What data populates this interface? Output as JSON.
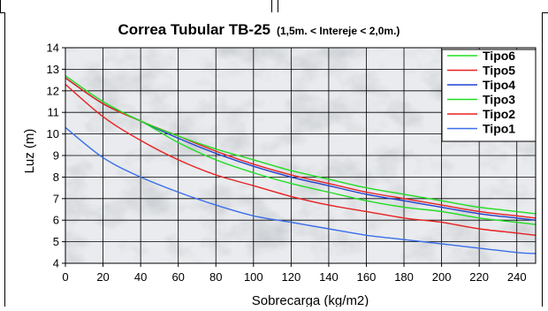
{
  "chart_data": {
    "type": "line",
    "title": "Correa Tubular TB-25",
    "subtitle": "(1,5m. < Intereje < 2,0m.)",
    "xlabel": "Sobrecarga (kg/m2)",
    "ylabel": "Luz (m)",
    "xlim": [
      0,
      250
    ],
    "ylim": [
      4,
      14
    ],
    "xticks": [
      0,
      20,
      40,
      60,
      80,
      100,
      120,
      140,
      160,
      180,
      200,
      220,
      240
    ],
    "yticks": [
      4,
      5,
      6,
      7,
      8,
      9,
      10,
      11,
      12,
      13,
      14
    ],
    "grid": true,
    "legend_position": "top-right",
    "x": [
      0,
      20,
      40,
      60,
      80,
      100,
      120,
      140,
      160,
      180,
      200,
      220,
      240,
      250
    ],
    "series": [
      {
        "name": "Tipo6",
        "color": "#22dd22",
        "values": [
          12.7,
          11.5,
          10.6,
          9.9,
          9.3,
          8.8,
          8.3,
          7.9,
          7.5,
          7.2,
          6.9,
          6.6,
          6.4,
          6.3
        ]
      },
      {
        "name": "Tipo5",
        "color": "#e82020",
        "values": [
          12.6,
          11.4,
          10.6,
          9.9,
          9.2,
          8.6,
          8.1,
          7.7,
          7.3,
          7.0,
          6.7,
          6.4,
          6.2,
          6.1
        ]
      },
      {
        "name": "Tipo4",
        "color": "#2040d0",
        "values": [
          12.6,
          11.4,
          10.6,
          9.8,
          9.1,
          8.5,
          8.0,
          7.6,
          7.2,
          6.9,
          6.6,
          6.3,
          6.1,
          6.0
        ]
      },
      {
        "name": "Tipo3",
        "color": "#22dd22",
        "values": [
          12.6,
          11.4,
          10.6,
          9.6,
          8.8,
          8.2,
          7.7,
          7.3,
          6.9,
          6.6,
          6.4,
          6.1,
          5.9,
          5.8
        ]
      },
      {
        "name": "Tipo2",
        "color": "#e82020",
        "values": [
          12.3,
          10.8,
          9.7,
          8.8,
          8.1,
          7.6,
          7.1,
          6.7,
          6.4,
          6.1,
          5.9,
          5.6,
          5.4,
          5.3
        ]
      },
      {
        "name": "Tipo1",
        "color": "#3a6ee8",
        "values": [
          10.3,
          8.9,
          8.0,
          7.3,
          6.7,
          6.2,
          5.9,
          5.6,
          5.3,
          5.1,
          4.9,
          4.7,
          4.5,
          4.45
        ]
      }
    ]
  }
}
